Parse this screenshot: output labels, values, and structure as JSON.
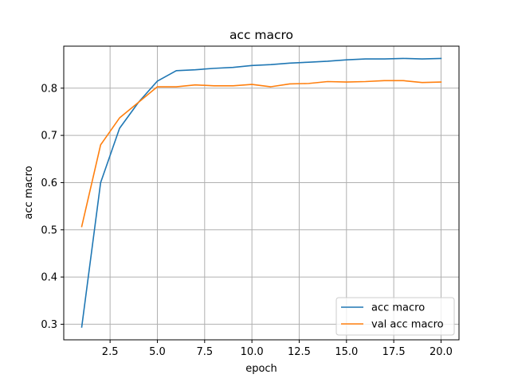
{
  "chart_data": {
    "type": "line",
    "title": "acc macro",
    "xlabel": "epoch",
    "ylabel": "acc macro",
    "xlim": [
      0.05,
      20.95
    ],
    "ylim": [
      0.267,
      0.889
    ],
    "grid": true,
    "legend_position": "lower-right",
    "x_ticks": [
      "2.5",
      "5.0",
      "7.5",
      "10.0",
      "12.5",
      "15.0",
      "17.5",
      "20.0"
    ],
    "x_tick_values": [
      2.5,
      5.0,
      7.5,
      10.0,
      12.5,
      15.0,
      17.5,
      20.0
    ],
    "y_ticks": [
      "0.3",
      "0.4",
      "0.5",
      "0.6",
      "0.7",
      "0.8"
    ],
    "y_tick_values": [
      0.3,
      0.4,
      0.5,
      0.6,
      0.7,
      0.8
    ],
    "x": [
      1,
      2,
      3,
      4,
      5,
      6,
      7,
      8,
      9,
      10,
      11,
      12,
      13,
      14,
      15,
      16,
      17,
      18,
      19,
      20
    ],
    "series": [
      {
        "name": "acc macro",
        "color": "#1f77b4",
        "values": [
          0.294,
          0.6,
          0.715,
          0.77,
          0.815,
          0.837,
          0.839,
          0.842,
          0.844,
          0.848,
          0.85,
          0.853,
          0.855,
          0.857,
          0.86,
          0.862,
          0.862,
          0.863,
          0.862,
          0.863
        ]
      },
      {
        "name": "val acc macro",
        "color": "#ff7f0e",
        "values": [
          0.507,
          0.68,
          0.737,
          0.77,
          0.803,
          0.803,
          0.807,
          0.805,
          0.805,
          0.808,
          0.803,
          0.809,
          0.81,
          0.814,
          0.813,
          0.814,
          0.816,
          0.816,
          0.812,
          0.813
        ]
      }
    ]
  }
}
